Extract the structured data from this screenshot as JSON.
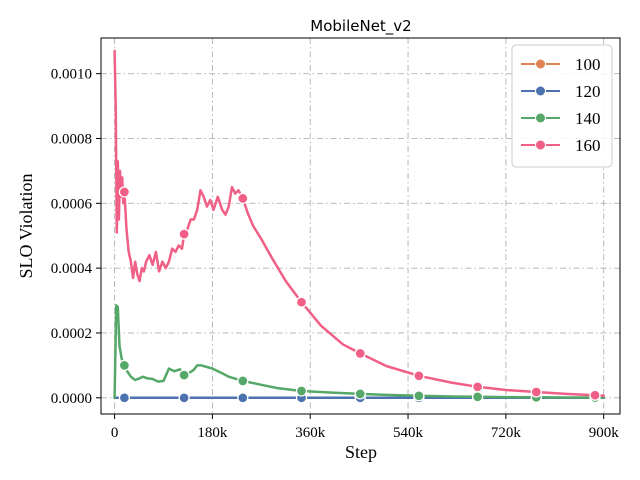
{
  "chart_data": {
    "type": "line",
    "title": "MobileNet_v2",
    "xlabel": "Step",
    "ylabel": "SLO Violation",
    "xlim": [
      -25000,
      930000
    ],
    "ylim": [
      -5e-05,
      0.00111
    ],
    "xticks": [
      0,
      180000,
      360000,
      540000,
      720000,
      900000
    ],
    "xtick_labels": [
      "0",
      "180k",
      "360k",
      "540k",
      "720k",
      "900k"
    ],
    "yticks": [
      0,
      0.0002,
      0.0004,
      0.0006,
      0.0008,
      0.001
    ],
    "ytick_labels": [
      "0.0000",
      "0.0002",
      "0.0004",
      "0.0006",
      "0.0008",
      "0.0010"
    ],
    "grid": true,
    "legend_position": "top-right",
    "series": [
      {
        "name": "100",
        "color": "#dd8452",
        "x": [
          0,
          100000,
          200000,
          300000,
          400000,
          500000,
          600000,
          700000,
          800000,
          900000
        ],
        "y": [
          0,
          0,
          0,
          0,
          0,
          0,
          0,
          0,
          0,
          0
        ],
        "marker_x": [
          18000,
          128000,
          236000,
          344000,
          452000,
          560000,
          668000,
          776000,
          884000
        ],
        "marker_y": [
          0,
          0,
          0,
          0,
          0,
          0,
          0,
          0,
          0
        ]
      },
      {
        "name": "120",
        "color": "#4c72b0",
        "x": [
          0,
          100000,
          200000,
          300000,
          400000,
          500000,
          600000,
          700000,
          800000,
          900000
        ],
        "y": [
          0,
          0,
          0,
          0,
          0,
          0,
          0,
          0,
          0,
          0
        ],
        "marker_x": [
          18000,
          128000,
          236000,
          344000,
          452000,
          560000,
          668000,
          776000,
          884000
        ],
        "marker_y": [
          0,
          0,
          0,
          0,
          0,
          0,
          0,
          0,
          0
        ]
      },
      {
        "name": "140",
        "color": "#55a868",
        "x": [
          0,
          3000,
          6000,
          9000,
          13000,
          18000,
          24000,
          30000,
          38000,
          46000,
          52000,
          60000,
          70000,
          80000,
          90000,
          100000,
          110000,
          120000,
          128000,
          135000,
          145000,
          152000,
          160000,
          170000,
          180000,
          195000,
          210000,
          236000,
          270000,
          300000,
          344000,
          400000,
          452000,
          500000,
          560000,
          620000,
          668000,
          720000,
          776000,
          830000,
          884000,
          900000
        ],
        "y": [
          0,
          0.000285,
          0.00028,
          0.00016,
          0.00012,
          0.0001,
          8e-05,
          6.5e-05,
          5.5e-05,
          6e-05,
          6.5e-05,
          6e-05,
          5.8e-05,
          5e-05,
          5.2e-05,
          9e-05,
          8.2e-05,
          8.8e-05,
          7e-05,
          7.5e-05,
          8.5e-05,
          0.0001,
          0.0001,
          9.5e-05,
          9e-05,
          7.8e-05,
          6.5e-05,
          5.2e-05,
          4e-05,
          3e-05,
          2.1e-05,
          1.6e-05,
          1.2e-05,
          9e-06,
          6e-06,
          4e-06,
          3e-06,
          2e-06,
          1.5e-06,
          1e-06,
          1e-06,
          1e-06
        ],
        "marker_x": [
          18000,
          128000,
          236000,
          344000,
          452000,
          560000,
          668000,
          776000,
          884000
        ],
        "marker_y": [
          0.0001,
          7e-05,
          5.2e-05,
          2.1e-05,
          1.2e-05,
          6e-06,
          3e-06,
          1.5e-06,
          1e-06
        ]
      },
      {
        "name": "160",
        "color": "#f05f85",
        "x": [
          0,
          2000,
          4000,
          6000,
          8000,
          10000,
          12000,
          14000,
          16000,
          18000,
          22000,
          26000,
          30000,
          34000,
          38000,
          42000,
          46000,
          50000,
          54000,
          58000,
          64000,
          70000,
          76000,
          82000,
          88000,
          94000,
          100000,
          106000,
          112000,
          118000,
          124000,
          128000,
          134000,
          140000,
          146000,
          152000,
          158000,
          164000,
          170000,
          176000,
          182000,
          190000,
          198000,
          204000,
          210000,
          216000,
          222000,
          228000,
          236000,
          245000,
          255000,
          270000,
          290000,
          315000,
          344000,
          380000,
          420000,
          452000,
          500000,
          560000,
          620000,
          668000,
          720000,
          776000,
          830000,
          884000,
          900000
        ],
        "y": [
          0.00107,
          0.0009,
          0.00051,
          0.00073,
          0.00055,
          0.0007,
          0.00062,
          0.00068,
          0.0006,
          0.000635,
          0.00052,
          0.00045,
          0.00042,
          0.00037,
          0.00042,
          0.00038,
          0.00036,
          0.0004,
          0.00039,
          0.00042,
          0.00044,
          0.00041,
          0.00045,
          0.00039,
          0.00042,
          0.0004,
          0.00042,
          0.00046,
          0.00045,
          0.00047,
          0.00046,
          0.000505,
          0.00052,
          0.00055,
          0.00055,
          0.00058,
          0.00064,
          0.00062,
          0.00059,
          0.00061,
          0.00058,
          0.00062,
          0.00058,
          0.000565,
          0.00059,
          0.00065,
          0.00063,
          0.00064,
          0.000615,
          0.00057,
          0.00053,
          0.00049,
          0.00043,
          0.00036,
          0.000295,
          0.000222,
          0.000165,
          0.000137,
          9.8e-05,
          6.8e-05,
          4.7e-05,
          3.4e-05,
          2.4e-05,
          1.8e-05,
          1.2e-05,
          8e-06,
          6e-06
        ],
        "marker_x": [
          18000,
          128000,
          236000,
          344000,
          452000,
          560000,
          668000,
          776000,
          884000
        ],
        "marker_y": [
          0.000635,
          0.000505,
          0.000615,
          0.000295,
          0.000137,
          6.8e-05,
          3.4e-05,
          1.8e-05,
          8e-06
        ]
      }
    ]
  }
}
